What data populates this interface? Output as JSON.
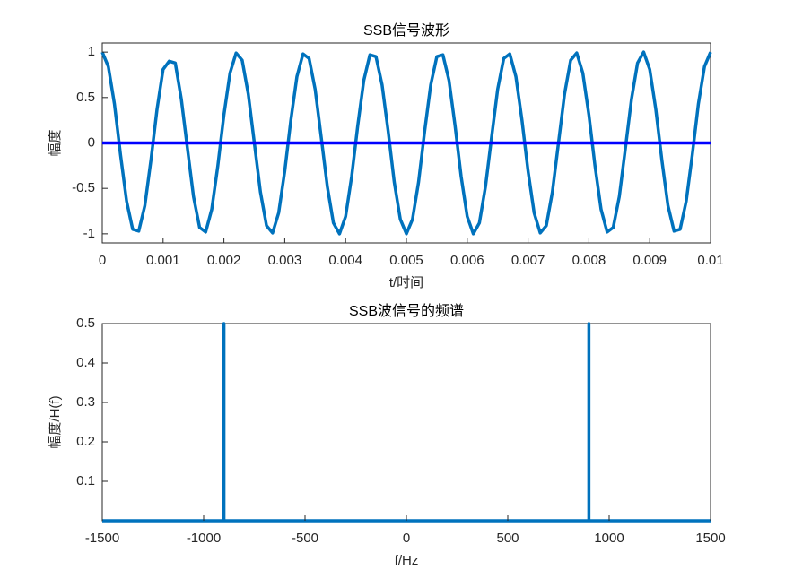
{
  "chart_data": [
    {
      "type": "line",
      "title": "SSB信号波形",
      "xlabel": "t/时间",
      "ylabel": "幅度",
      "xlim": [
        0,
        0.01
      ],
      "ylim": [
        -1.1,
        1.1
      ],
      "xticks": [
        0,
        0.001,
        0.002,
        0.003,
        0.004,
        0.005,
        0.006,
        0.007,
        0.008,
        0.009,
        0.01
      ],
      "yticks": [
        -1,
        -0.5,
        0,
        0.5,
        1
      ],
      "series": [
        {
          "color": "#0072bd",
          "x": [
            0,
            0.0001,
            0.0002,
            0.0003,
            0.0004,
            0.0005,
            0.0006,
            0.0007,
            0.0008,
            0.0009,
            0.001,
            0.0011,
            0.0012,
            0.0013,
            0.0014,
            0.0015,
            0.0016,
            0.0017,
            0.0018,
            0.0019,
            0.002,
            0.0021,
            0.0022,
            0.0023,
            0.0024,
            0.0025,
            0.0026,
            0.0027,
            0.0028,
            0.0029,
            0.003,
            0.0031,
            0.0032,
            0.0033,
            0.0034,
            0.0035,
            0.0036,
            0.0037,
            0.0038,
            0.0039,
            0.004,
            0.0041,
            0.0042,
            0.0043,
            0.0044,
            0.0045,
            0.0046,
            0.0047,
            0.0048,
            0.0049,
            0.005,
            0.0051,
            0.0052,
            0.0053,
            0.0054,
            0.0055,
            0.0056,
            0.0057,
            0.0058,
            0.0059,
            0.006,
            0.0061,
            0.0062,
            0.0063,
            0.0064,
            0.0065,
            0.0066,
            0.0067,
            0.0068,
            0.0069,
            0.007,
            0.0071,
            0.0072,
            0.0073,
            0.0074,
            0.0075,
            0.0076,
            0.0077,
            0.0078,
            0.0079,
            0.008,
            0.0081,
            0.0082,
            0.0083,
            0.0084,
            0.0085,
            0.0086,
            0.0087,
            0.0088,
            0.0089,
            0.009,
            0.0091,
            0.0092,
            0.0093,
            0.0094,
            0.0095,
            0.0096,
            0.0097,
            0.0098,
            0.0099,
            0.01
          ],
          "values": [
            1,
            0.84,
            0.43,
            -0.13,
            -0.64,
            -0.95,
            -0.97,
            -0.69,
            -0.19,
            0.37,
            0.81,
            0.9,
            0.88,
            0.48,
            -0.06,
            -0.59,
            -0.93,
            -0.98,
            -0.73,
            -0.25,
            0.31,
            0.77,
            0.99,
            0.91,
            0.54,
            0,
            -0.54,
            -0.91,
            -0.99,
            -0.77,
            -0.31,
            0.25,
            0.73,
            0.98,
            0.93,
            0.59,
            0.06,
            -0.48,
            -0.88,
            -1,
            -0.81,
            -0.37,
            0.19,
            0.69,
            0.97,
            0.95,
            0.64,
            0.13,
            -0.43,
            -0.84,
            -1,
            -0.84,
            -0.43,
            0.13,
            0.64,
            0.95,
            0.97,
            0.69,
            0.19,
            -0.37,
            -0.81,
            -1,
            -0.88,
            -0.48,
            0.06,
            0.59,
            0.93,
            0.98,
            0.73,
            0.25,
            -0.31,
            -0.77,
            -0.99,
            -0.91,
            -0.54,
            0,
            0.54,
            0.91,
            0.99,
            0.77,
            0.31,
            -0.25,
            -0.73,
            -0.98,
            -0.93,
            -0.59,
            -0.06,
            0.48,
            0.88,
            1,
            0.81,
            0.37,
            -0.19,
            -0.69,
            -0.97,
            -0.95,
            -0.64,
            -0.13,
            0.43,
            0.84,
            1
          ]
        },
        {
          "color": "#0000ff",
          "x": [
            0,
            0.01
          ],
          "values": [
            0,
            0
          ]
        }
      ]
    },
    {
      "type": "line",
      "title": "SSB波信号的频谱",
      "xlabel": "f/Hz",
      "ylabel": "幅度/H(f)",
      "xlim": [
        -1500,
        1500
      ],
      "ylim": [
        0,
        0.5
      ],
      "xticks": [
        -1500,
        -1000,
        -500,
        0,
        500,
        1000,
        1500
      ],
      "yticks": [
        0.1,
        0.2,
        0.3,
        0.4,
        0.5
      ],
      "series": [
        {
          "color": "#0072bd",
          "x": [
            -1500,
            -900,
            -900,
            -900,
            900,
            900,
            900,
            1500
          ],
          "values": [
            0,
            0,
            0.5,
            0,
            0,
            0.5,
            0,
            0
          ]
        }
      ]
    }
  ]
}
